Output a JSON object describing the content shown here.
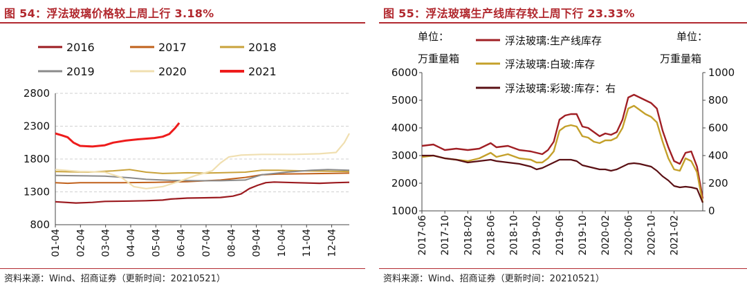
{
  "left": {
    "title": "图 54：浮法玻璃价格较上周上行 3.18%",
    "source": "资料来源：Wind、招商证券（更新时间：20210521）",
    "chart_data": {
      "type": "line",
      "ylim": [
        800,
        2800
      ],
      "yticks": [
        "800",
        "1300",
        "1800",
        "2300",
        "2800"
      ],
      "ytick_values": [
        800,
        1300,
        1800,
        2300,
        2800
      ],
      "xticks": [
        "01-04",
        "02-04",
        "03-04",
        "04-04",
        "05-04",
        "06-04",
        "07-04",
        "08-04",
        "09-04",
        "10-04",
        "11-04",
        "12-04"
      ],
      "xlim_days": [
        0,
        356
      ],
      "grid": "horizontal dashed",
      "legend_placement": "top",
      "series": [
        {
          "name": "2016",
          "color": "#9b1a1f",
          "width": 2.2,
          "points": [
            [
              0,
              1150
            ],
            [
              25,
              1130
            ],
            [
              45,
              1140
            ],
            [
              60,
              1155
            ],
            [
              90,
              1160
            ],
            [
              110,
              1165
            ],
            [
              130,
              1175
            ],
            [
              140,
              1190
            ],
            [
              160,
              1205
            ],
            [
              180,
              1210
            ],
            [
              200,
              1215
            ],
            [
              215,
              1235
            ],
            [
              225,
              1270
            ],
            [
              235,
              1350
            ],
            [
              245,
              1400
            ],
            [
              255,
              1440
            ],
            [
              265,
              1450
            ],
            [
              290,
              1440
            ],
            [
              320,
              1430
            ],
            [
              340,
              1440
            ],
            [
              356,
              1445
            ]
          ]
        },
        {
          "name": "2017",
          "color": "#c0601a",
          "width": 2.0,
          "points": [
            [
              0,
              1440
            ],
            [
              15,
              1430
            ],
            [
              30,
              1440
            ],
            [
              80,
              1440
            ],
            [
              120,
              1445
            ],
            [
              160,
              1455
            ],
            [
              200,
              1480
            ],
            [
              230,
              1520
            ],
            [
              250,
              1560
            ],
            [
              270,
              1570
            ],
            [
              300,
              1575
            ],
            [
              330,
              1580
            ],
            [
              356,
              1585
            ]
          ]
        },
        {
          "name": "2018",
          "color": "#c9a23a",
          "width": 2.0,
          "points": [
            [
              0,
              1610
            ],
            [
              40,
              1600
            ],
            [
              70,
              1620
            ],
            [
              90,
              1640
            ],
            [
              110,
              1600
            ],
            [
              130,
              1580
            ],
            [
              160,
              1590
            ],
            [
              180,
              1585
            ],
            [
              200,
              1590
            ],
            [
              230,
              1600
            ],
            [
              250,
              1630
            ],
            [
              270,
              1630
            ],
            [
              300,
              1620
            ],
            [
              330,
              1615
            ],
            [
              356,
              1610
            ]
          ]
        },
        {
          "name": "2019",
          "color": "#8a8a8a",
          "width": 2.0,
          "points": [
            [
              0,
              1550
            ],
            [
              30,
              1545
            ],
            [
              60,
              1540
            ],
            [
              90,
              1515
            ],
            [
              110,
              1490
            ],
            [
              140,
              1475
            ],
            [
              170,
              1470
            ],
            [
              200,
              1470
            ],
            [
              230,
              1480
            ],
            [
              240,
              1520
            ],
            [
              250,
              1560
            ],
            [
              280,
              1600
            ],
            [
              310,
              1630
            ],
            [
              330,
              1640
            ],
            [
              356,
              1630
            ]
          ]
        },
        {
          "name": "2020",
          "color": "#f0dfb0",
          "width": 2.2,
          "points": [
            [
              0,
              1640
            ],
            [
              30,
              1610
            ],
            [
              60,
              1600
            ],
            [
              80,
              1520
            ],
            [
              95,
              1380
            ],
            [
              110,
              1350
            ],
            [
              130,
              1380
            ],
            [
              150,
              1460
            ],
            [
              170,
              1550
            ],
            [
              190,
              1620
            ],
            [
              200,
              1740
            ],
            [
              210,
              1830
            ],
            [
              225,
              1860
            ],
            [
              250,
              1870
            ],
            [
              290,
              1870
            ],
            [
              320,
              1880
            ],
            [
              340,
              1900
            ],
            [
              350,
              2050
            ],
            [
              356,
              2190
            ]
          ]
        },
        {
          "name": "2021",
          "color": "#ee1c1c",
          "width": 3.0,
          "points": [
            [
              0,
              2190
            ],
            [
              8,
              2160
            ],
            [
              15,
              2130
            ],
            [
              22,
              2050
            ],
            [
              30,
              2000
            ],
            [
              45,
              1990
            ],
            [
              60,
              2010
            ],
            [
              70,
              2050
            ],
            [
              85,
              2080
            ],
            [
              100,
              2100
            ],
            [
              120,
              2120
            ],
            [
              130,
              2140
            ],
            [
              138,
              2180
            ],
            [
              145,
              2270
            ],
            [
              150,
              2350
            ]
          ]
        }
      ]
    }
  },
  "right": {
    "title": "图 55：浮法玻璃生产线库存较上周下行 23.33%",
    "source": "资料来源：Wind、招商证券（更新时间：20210521）",
    "unit_left": [
      "单位：",
      "万重量箱"
    ],
    "unit_right": [
      "单位：",
      "万重量箱"
    ],
    "chart_data": {
      "type": "line",
      "ylim": [
        1000,
        6000
      ],
      "y2lim": [
        0,
        1000
      ],
      "yticks": [
        "1000",
        "2000",
        "3000",
        "4000",
        "5000",
        "6000"
      ],
      "ytick_values": [
        1000,
        2000,
        3000,
        4000,
        5000,
        6000
      ],
      "y2ticks": [
        "0",
        "200",
        "400",
        "600",
        "800",
        "1000"
      ],
      "y2tick_values": [
        0,
        200,
        400,
        600,
        800,
        1000
      ],
      "xticks": [
        "2017-06",
        "2017-10",
        "2018-02",
        "2018-06",
        "2018-10",
        "2019-02",
        "2019-06",
        "2019-10",
        "2020-02",
        "2020-06",
        "2020-10",
        "2021-02"
      ],
      "xlim_months": [
        0,
        49
      ],
      "legend_placement": "top",
      "series": [
        {
          "name": "浮法玻璃:生产线库存",
          "axis": "left",
          "color": "#a01f24",
          "width": 2.4,
          "points": [
            [
              0,
              3350
            ],
            [
              2,
              3400
            ],
            [
              4,
              3200
            ],
            [
              6,
              3250
            ],
            [
              8,
              3200
            ],
            [
              10,
              3250
            ],
            [
              12,
              3450
            ],
            [
              13,
              3300
            ],
            [
              15,
              3350
            ],
            [
              17,
              3200
            ],
            [
              19,
              3150
            ],
            [
              20,
              3100
            ],
            [
              21,
              3050
            ],
            [
              22,
              3200
            ],
            [
              23,
              3500
            ],
            [
              24,
              4300
            ],
            [
              25,
              4450
            ],
            [
              26,
              4500
            ],
            [
              27,
              4500
            ],
            [
              28,
              4050
            ],
            [
              29,
              4000
            ],
            [
              30,
              3850
            ],
            [
              31,
              3700
            ],
            [
              32,
              3800
            ],
            [
              33,
              3750
            ],
            [
              34,
              3850
            ],
            [
              35,
              4300
            ],
            [
              36,
              5100
            ],
            [
              37,
              5200
            ],
            [
              38,
              5100
            ],
            [
              39,
              5000
            ],
            [
              40,
              4900
            ],
            [
              41,
              4700
            ],
            [
              42,
              3900
            ],
            [
              43,
              3300
            ],
            [
              44,
              2800
            ],
            [
              45,
              2700
            ],
            [
              46,
              3100
            ],
            [
              47,
              3150
            ],
            [
              48,
              2600
            ],
            [
              49,
              1450
            ]
          ]
        },
        {
          "name": "浮法玻璃:白玻:库存",
          "axis": "left",
          "color": "#c4a02a",
          "width": 2.4,
          "points": [
            [
              0,
              2950
            ],
            [
              2,
              3000
            ],
            [
              4,
              2900
            ],
            [
              6,
              2850
            ],
            [
              8,
              2800
            ],
            [
              10,
              2900
            ],
            [
              12,
              3100
            ],
            [
              13,
              2950
            ],
            [
              15,
              3050
            ],
            [
              17,
              2900
            ],
            [
              19,
              2850
            ],
            [
              20,
              2750
            ],
            [
              21,
              2750
            ],
            [
              22,
              2900
            ],
            [
              23,
              3150
            ],
            [
              24,
              3900
            ],
            [
              25,
              4050
            ],
            [
              26,
              4100
            ],
            [
              27,
              4050
            ],
            [
              28,
              3700
            ],
            [
              29,
              3650
            ],
            [
              30,
              3500
            ],
            [
              31,
              3450
            ],
            [
              32,
              3550
            ],
            [
              33,
              3550
            ],
            [
              34,
              3650
            ],
            [
              35,
              4000
            ],
            [
              36,
              4700
            ],
            [
              37,
              4800
            ],
            [
              38,
              4650
            ],
            [
              39,
              4500
            ],
            [
              40,
              4400
            ],
            [
              41,
              4200
            ],
            [
              42,
              3500
            ],
            [
              43,
              2900
            ],
            [
              44,
              2500
            ],
            [
              45,
              2450
            ],
            [
              46,
              2900
            ],
            [
              47,
              2800
            ],
            [
              48,
              2400
            ],
            [
              49,
              1300
            ]
          ]
        },
        {
          "name": "浮法玻璃:彩玻:库存：右",
          "axis": "right",
          "color": "#5a1014",
          "width": 2.2,
          "points": [
            [
              0,
              400
            ],
            [
              2,
              400
            ],
            [
              4,
              380
            ],
            [
              6,
              370
            ],
            [
              8,
              350
            ],
            [
              10,
              360
            ],
            [
              12,
              370
            ],
            [
              13,
              360
            ],
            [
              15,
              350
            ],
            [
              17,
              340
            ],
            [
              19,
              320
            ],
            [
              20,
              300
            ],
            [
              21,
              310
            ],
            [
              22,
              330
            ],
            [
              23,
              350
            ],
            [
              24,
              370
            ],
            [
              25,
              370
            ],
            [
              26,
              370
            ],
            [
              27,
              360
            ],
            [
              28,
              330
            ],
            [
              29,
              320
            ],
            [
              30,
              310
            ],
            [
              31,
              300
            ],
            [
              32,
              300
            ],
            [
              33,
              290
            ],
            [
              34,
              300
            ],
            [
              35,
              320
            ],
            [
              36,
              340
            ],
            [
              37,
              345
            ],
            [
              38,
              340
            ],
            [
              39,
              330
            ],
            [
              40,
              320
            ],
            [
              41,
              290
            ],
            [
              42,
              250
            ],
            [
              43,
              220
            ],
            [
              44,
              180
            ],
            [
              45,
              170
            ],
            [
              46,
              175
            ],
            [
              47,
              170
            ],
            [
              48,
              160
            ],
            [
              49,
              60
            ]
          ]
        }
      ]
    }
  }
}
